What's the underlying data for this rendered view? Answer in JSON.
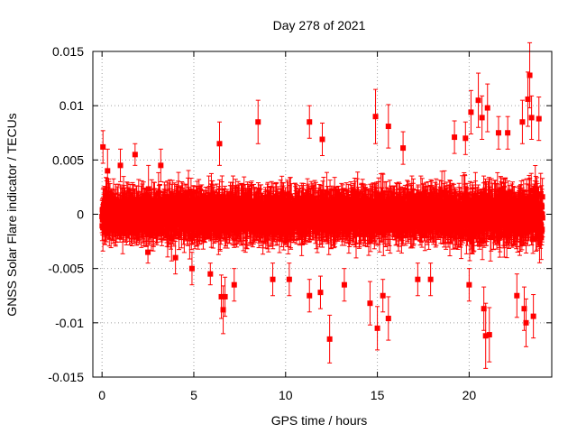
{
  "chart_data": {
    "type": "scatter",
    "title": "Day 278 of 2021",
    "xlabel": "GPS time / hours",
    "ylabel": "GNSS Solar Flare indicator / TECUs",
    "xlim": [
      -0.5,
      24.5
    ],
    "ylim": [
      -0.015,
      0.015
    ],
    "x_ticks": [
      0,
      5,
      10,
      15,
      20
    ],
    "x_tick_labels": [
      "0",
      "5",
      "10",
      "15",
      "20"
    ],
    "y_ticks": [
      -0.015,
      -0.01,
      -0.005,
      0,
      0.005,
      0.01,
      0.015
    ],
    "y_tick_labels": [
      "-0.015",
      "-0.01",
      "-0.005",
      "0",
      "0.005",
      "0.01",
      "0.015"
    ],
    "grid": true,
    "marker": "filled-square",
    "error_bars": true,
    "series_color": "#ff0000",
    "series": [
      {
        "points": [
          {
            "x": 0.05,
            "y": 0.0062,
            "err": 0.0015
          },
          {
            "x": 0.3,
            "y": 0.004,
            "err": 0.002
          },
          {
            "x": 1.0,
            "y": 0.0045,
            "err": 0.0015
          },
          {
            "x": 1.8,
            "y": 0.0055,
            "err": 0.001
          },
          {
            "x": 2.5,
            "y": -0.0035,
            "err": 0.001
          },
          {
            "x": 3.2,
            "y": 0.0045,
            "err": 0.0015
          },
          {
            "x": 4.0,
            "y": -0.004,
            "err": 0.0015
          },
          {
            "x": 4.9,
            "y": -0.005,
            "err": 0.0015
          },
          {
            "x": 5.9,
            "y": -0.0055,
            "err": 0.001
          },
          {
            "x": 6.4,
            "y": 0.0065,
            "err": 0.002
          },
          {
            "x": 6.5,
            "y": -0.0076,
            "err": 0.002
          },
          {
            "x": 6.6,
            "y": -0.0088,
            "err": 0.0022
          },
          {
            "x": 6.7,
            "y": -0.0076,
            "err": 0.0018
          },
          {
            "x": 7.2,
            "y": -0.0065,
            "err": 0.0015
          },
          {
            "x": 8.5,
            "y": 0.0085,
            "err": 0.002
          },
          {
            "x": 9.3,
            "y": -0.006,
            "err": 0.0015
          },
          {
            "x": 10.2,
            "y": -0.006,
            "err": 0.0015
          },
          {
            "x": 11.3,
            "y": 0.0085,
            "err": 0.0015
          },
          {
            "x": 11.3,
            "y": -0.0075,
            "err": 0.0015
          },
          {
            "x": 11.9,
            "y": -0.0072,
            "err": 0.0015
          },
          {
            "x": 12.0,
            "y": 0.0069,
            "err": 0.0015
          },
          {
            "x": 12.4,
            "y": -0.0115,
            "err": 0.0022
          },
          {
            "x": 13.2,
            "y": -0.0065,
            "err": 0.0015
          },
          {
            "x": 14.6,
            "y": -0.0082,
            "err": 0.002
          },
          {
            "x": 14.9,
            "y": 0.009,
            "err": 0.0025
          },
          {
            "x": 15.0,
            "y": -0.0105,
            "err": 0.002
          },
          {
            "x": 15.3,
            "y": -0.0075,
            "err": 0.0015
          },
          {
            "x": 15.6,
            "y": -0.0096,
            "err": 0.002
          },
          {
            "x": 15.6,
            "y": 0.0081,
            "err": 0.002
          },
          {
            "x": 16.4,
            "y": 0.0061,
            "err": 0.0015
          },
          {
            "x": 17.2,
            "y": -0.006,
            "err": 0.0015
          },
          {
            "x": 17.9,
            "y": -0.006,
            "err": 0.0015
          },
          {
            "x": 19.2,
            "y": 0.0071,
            "err": 0.0015
          },
          {
            "x": 19.8,
            "y": 0.007,
            "err": 0.0015
          },
          {
            "x": 20.0,
            "y": -0.0065,
            "err": 0.0015
          },
          {
            "x": 20.1,
            "y": 0.0094,
            "err": 0.002
          },
          {
            "x": 20.5,
            "y": 0.0105,
            "err": 0.0025
          },
          {
            "x": 20.7,
            "y": 0.0089,
            "err": 0.002
          },
          {
            "x": 20.8,
            "y": -0.0087,
            "err": 0.002
          },
          {
            "x": 20.9,
            "y": -0.0112,
            "err": 0.003
          },
          {
            "x": 21.0,
            "y": 0.0098,
            "err": 0.0022
          },
          {
            "x": 21.1,
            "y": -0.0111,
            "err": 0.0025
          },
          {
            "x": 21.6,
            "y": 0.0075,
            "err": 0.0015
          },
          {
            "x": 22.1,
            "y": 0.0075,
            "err": 0.0015
          },
          {
            "x": 22.6,
            "y": -0.0075,
            "err": 0.002
          },
          {
            "x": 22.9,
            "y": 0.0085,
            "err": 0.002
          },
          {
            "x": 23.0,
            "y": -0.0087,
            "err": 0.002
          },
          {
            "x": 23.1,
            "y": -0.01,
            "err": 0.0022
          },
          {
            "x": 23.2,
            "y": 0.0106,
            "err": 0.0025
          },
          {
            "x": 23.3,
            "y": 0.0128,
            "err": 0.003
          },
          {
            "x": 23.4,
            "y": 0.0089,
            "err": 0.002
          },
          {
            "x": 23.5,
            "y": -0.0094,
            "err": 0.002
          },
          {
            "x": 23.8,
            "y": 0.0088,
            "err": 0.002
          }
        ]
      }
    ]
  }
}
